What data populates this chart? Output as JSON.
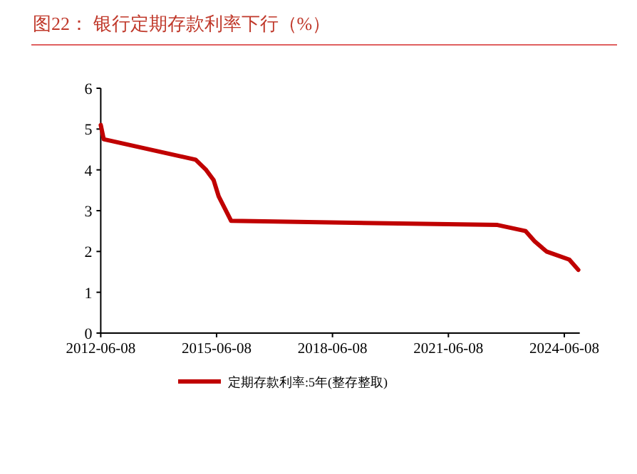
{
  "chart_data": {
    "type": "line",
    "title": "图22：  银行定期存款利率下行（%）",
    "series": [
      {
        "name": "定期存款利率:5年(整存整取)",
        "color": "#c00000",
        "x": [
          "2012-06-08",
          "2012-07-06",
          "2014-11-22",
          "2015-03-01",
          "2015-05-11",
          "2015-06-28",
          "2015-08-26",
          "2015-10-24",
          "2022-09-15",
          "2023-06-08",
          "2023-09-01",
          "2023-12-22",
          "2024-07-25",
          "2024-10-18"
        ],
        "values": [
          5.1,
          4.75,
          4.25,
          4.0,
          3.75,
          3.35,
          3.05,
          2.75,
          2.65,
          2.5,
          2.25,
          2.0,
          1.8,
          1.55
        ]
      }
    ],
    "xlim": [
      "2012-06-08",
      "2024-11-01"
    ],
    "xticks": [
      "2012-06-08",
      "2015-06-08",
      "2018-06-08",
      "2021-06-08",
      "2024-06-08"
    ],
    "ylim": [
      0,
      6
    ],
    "yticks": [
      0,
      1,
      2,
      3,
      4,
      5,
      6
    ],
    "grid": false,
    "legend": "bottom",
    "marker": "none",
    "line_style": "solid"
  }
}
